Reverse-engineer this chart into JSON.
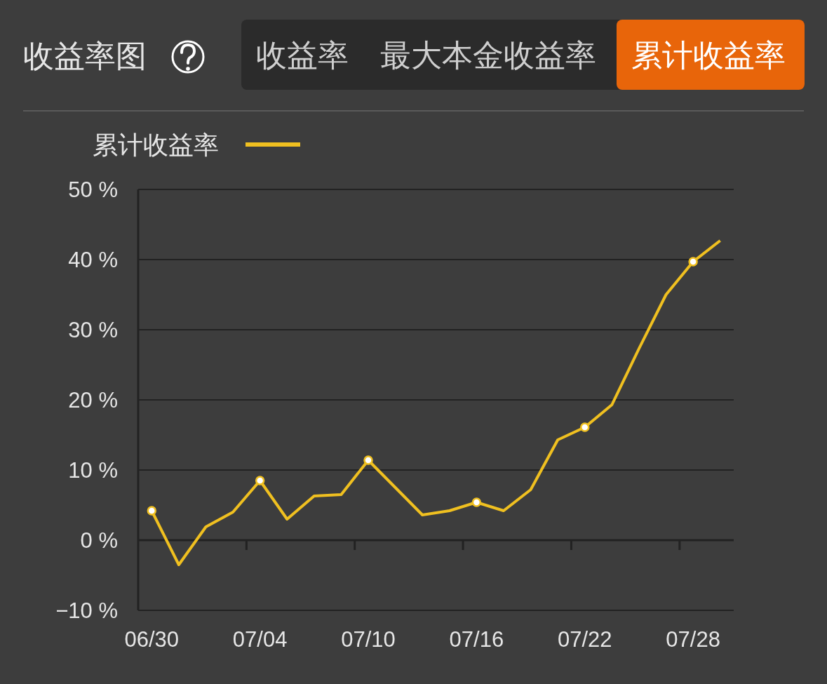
{
  "chart_data": {
    "type": "line",
    "title": "收益率图",
    "annotations": [
      "收益率",
      "最大本金收益率",
      "累计收益率"
    ],
    "categories": [
      "06/30",
      null,
      null,
      null,
      "07/04",
      null,
      null,
      null,
      "07/10",
      null,
      null,
      null,
      "07/16",
      null,
      null,
      null,
      "07/22",
      null,
      null,
      null,
      "07/28",
      null
    ],
    "series": [
      {
        "name": "累计收益率",
        "color": "#f0c020",
        "values": [
          4.2,
          -3.5,
          1.9,
          4.0,
          8.5,
          3.0,
          6.3,
          6.5,
          11.4,
          7.5,
          3.6,
          4.2,
          5.4,
          4.2,
          7.2,
          14.3,
          16.1,
          19.3,
          27.3,
          35.0,
          39.7,
          42.7
        ]
      },
      {
        "type": "scatter",
        "color": "#ffffff",
        "x": [
          "06/30",
          "07/04",
          "07/10",
          "07/16",
          "07/22",
          "07/28"
        ],
        "values": [
          4.2,
          8.5,
          11.4,
          5.4,
          16.1,
          39.7
        ]
      }
    ],
    "ylim": [
      -10,
      50
    ],
    "yticks": [
      {
        "value": -10,
        "label": "−10 %"
      },
      {
        "value": 0,
        "label": "0 %"
      },
      {
        "value": 10,
        "label": "10 %"
      },
      {
        "value": 20,
        "label": "20 %"
      },
      {
        "value": 30,
        "label": "30 %"
      },
      {
        "value": 40,
        "label": "40 %"
      },
      {
        "value": 50,
        "label": "50 %"
      }
    ],
    "grid": "y",
    "legend": "top left",
    "line_style": "solid"
  }
}
